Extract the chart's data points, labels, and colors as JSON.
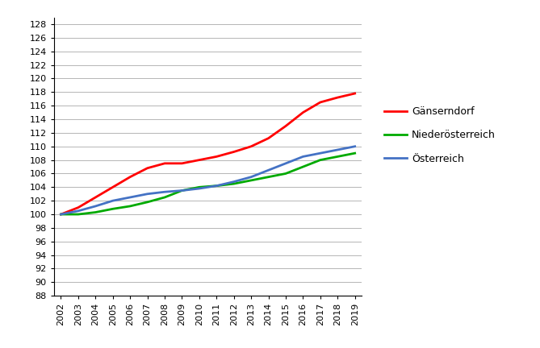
{
  "years": [
    2002,
    2003,
    2004,
    2005,
    2006,
    2007,
    2008,
    2009,
    2010,
    2011,
    2012,
    2013,
    2014,
    2015,
    2016,
    2017,
    2018,
    2019
  ],
  "gaenserndorf": [
    100.0,
    101.0,
    102.5,
    104.0,
    105.5,
    106.8,
    107.5,
    107.5,
    108.0,
    108.5,
    109.2,
    110.0,
    111.2,
    113.0,
    115.0,
    116.5,
    117.2,
    117.8
  ],
  "niederoesterreich": [
    100.0,
    100.0,
    100.3,
    100.8,
    101.2,
    101.8,
    102.5,
    103.5,
    104.0,
    104.2,
    104.5,
    105.0,
    105.5,
    106.0,
    107.0,
    108.0,
    108.5,
    109.0
  ],
  "oesterreich": [
    100.0,
    100.5,
    101.2,
    102.0,
    102.5,
    103.0,
    103.3,
    103.5,
    103.8,
    104.2,
    104.8,
    105.5,
    106.5,
    107.5,
    108.5,
    109.0,
    109.5,
    110.0
  ],
  "line_colors": {
    "gaenserndorf": "#ff0000",
    "niederoesterreich": "#00aa00",
    "oesterreich": "#4472c4"
  },
  "line_widths": {
    "gaenserndorf": 2.0,
    "niederoesterreich": 2.0,
    "oesterreich": 2.0
  },
  "legend_labels": {
    "gaenserndorf": "Gänserndorf",
    "niederoesterreich": "Niederösterreich",
    "oesterreich": "Österreich"
  },
  "ylim": [
    88,
    129
  ],
  "yticks": [
    88,
    90,
    92,
    94,
    96,
    98,
    100,
    102,
    104,
    106,
    108,
    110,
    112,
    114,
    116,
    118,
    120,
    122,
    124,
    126,
    128
  ],
  "xlim_left": 2001.6,
  "xlim_right": 2019.4,
  "background_color": "#ffffff",
  "grid_color": "#aaaaaa",
  "legend_fontsize": 9,
  "tick_fontsize": 8
}
